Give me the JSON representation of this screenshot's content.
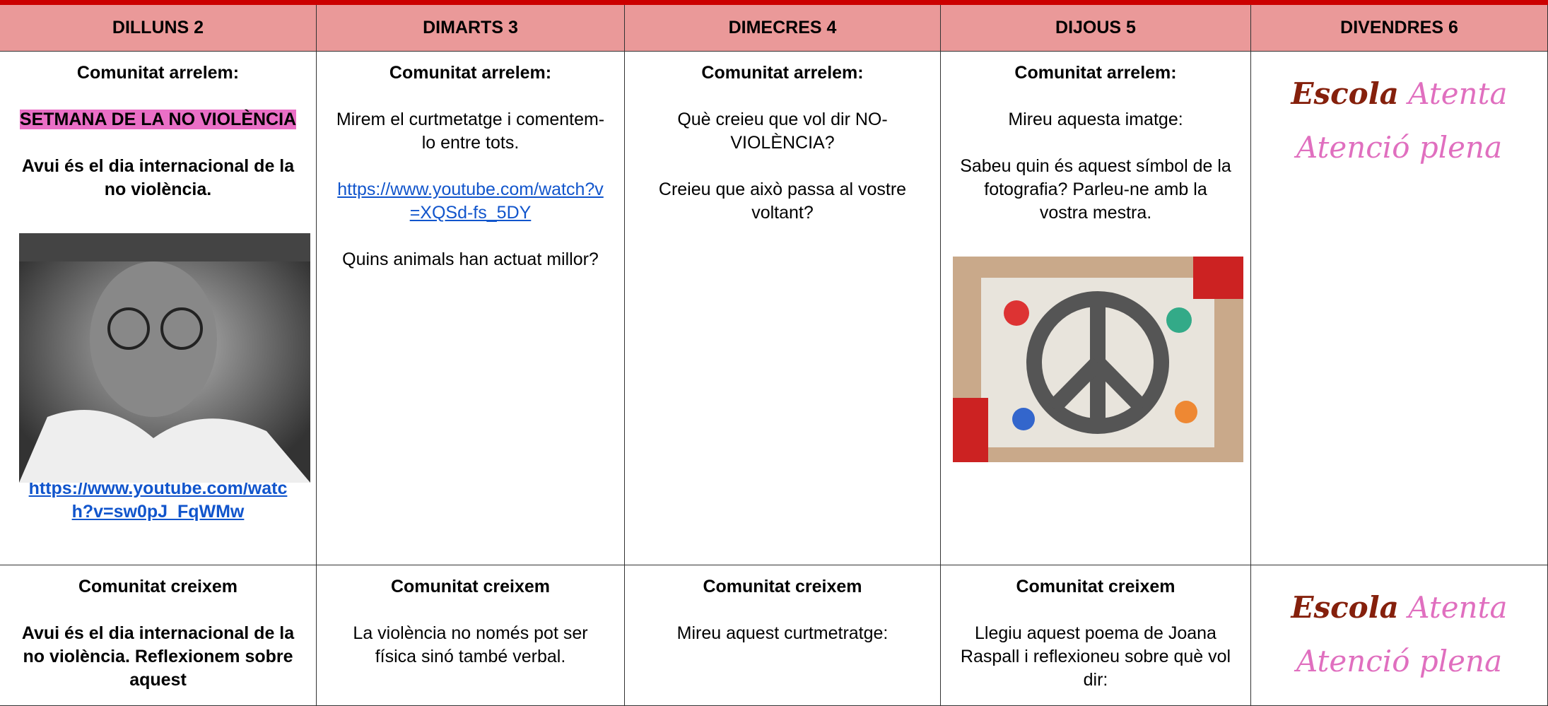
{
  "header": {
    "days": [
      "DILLUNS 2",
      "DIMARTS 3",
      "DIMECRES 4",
      "DIJOUS 5",
      "DIVENDRES 6"
    ]
  },
  "logo": {
    "school": "Escola",
    "word": "Atenta",
    "motto": "Atenció plena"
  },
  "rows": [
    {
      "cells": [
        {
          "title": "Comunitat arrelem:",
          "highlight": "SETMANA DE LA NO VIOLÈNCIA",
          "bold": "Avui és el dia internacional de la no violència.",
          "link": "https://www.youtube.com/watch?v=sw0pJ_FqWMw"
        },
        {
          "title": "Comunitat arrelem:",
          "text": "Mirem el curtmetatge i comentem-lo entre tots.",
          "link": "https://www.youtube.com/watch?v=XQSd-fs_5DY",
          "question": "Quins animals han actuat millor?"
        },
        {
          "title": "Comunitat arrelem:",
          "text": "Què creieu que vol dir NO-VIOLÈNCIA?",
          "question": "Creieu que això passa al vostre voltant?"
        },
        {
          "title": "Comunitat arrelem:",
          "text": "Mireu aquesta imatge:",
          "question": "Sabeu quin és aquest símbol de la fotografia? Parleu-ne amb la vostra mestra."
        }
      ]
    },
    {
      "cells": [
        {
          "title": "Comunitat creixem",
          "bold": "Avui és el dia internacional de la no violència. Reflexionem sobre aquest"
        },
        {
          "title": "Comunitat creixem",
          "text": "La violència no només pot ser física sinó també verbal."
        },
        {
          "title": "Comunitat creixem",
          "text": "Mireu aquest curtmetratge:"
        },
        {
          "title": "Comunitat creixem",
          "text": "Llegiu aquest poema de Joana Raspall i reflexioneu sobre què vol dir:"
        }
      ]
    }
  ]
}
